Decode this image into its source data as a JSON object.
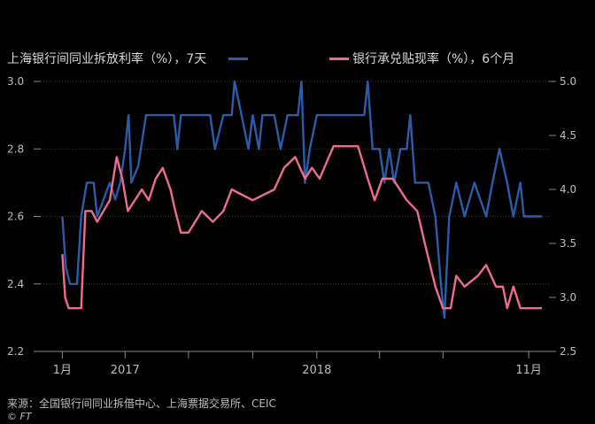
{
  "chart_data": {
    "type": "line",
    "legend_placement": "top",
    "grid": true,
    "x_start": "2016-12",
    "x_end": "2018-11",
    "x_ticks": [
      {
        "label": "1月",
        "x": "2017-01"
      },
      {
        "label": "2017",
        "x": "2017-04"
      },
      {
        "label": "",
        "x": "2017-07"
      },
      {
        "label": "",
        "x": "2017-10"
      },
      {
        "label": "2018",
        "x": "2018-01"
      },
      {
        "label": "",
        "x": "2018-04"
      },
      {
        "label": "",
        "x": "2018-07"
      },
      {
        "label": "11月",
        "x": "2018-11"
      }
    ],
    "y_left": {
      "range": [
        2.2,
        3.0
      ],
      "ticks": [
        "2.2",
        "2.4",
        "2.6",
        "2.8",
        "3.0"
      ]
    },
    "y_right": {
      "range": [
        2.5,
        5.0
      ],
      "ticks": [
        "2.5",
        "3.0",
        "3.5",
        "4.0",
        "4.5",
        "5.0"
      ]
    },
    "series": [
      {
        "name": "上海银行间同业拆放利率（%），7天",
        "axis": "left",
        "color": "#2a5caa",
        "points": [
          [
            "2017-01-01",
            2.6
          ],
          [
            "2017-01-06",
            2.45
          ],
          [
            "2017-01-12",
            2.4
          ],
          [
            "2017-01-22",
            2.4
          ],
          [
            "2017-01-28",
            2.6
          ],
          [
            "2017-02-05",
            2.7
          ],
          [
            "2017-02-15",
            2.7
          ],
          [
            "2017-02-20",
            2.6
          ],
          [
            "2017-03-01",
            2.65
          ],
          [
            "2017-03-10",
            2.7
          ],
          [
            "2017-03-18",
            2.65
          ],
          [
            "2017-03-25",
            2.7
          ],
          [
            "2017-04-01",
            2.8
          ],
          [
            "2017-04-06",
            2.9
          ],
          [
            "2017-04-10",
            2.7
          ],
          [
            "2017-04-20",
            2.75
          ],
          [
            "2017-05-01",
            2.9
          ],
          [
            "2017-06-10",
            2.9
          ],
          [
            "2017-06-15",
            2.8
          ],
          [
            "2017-06-20",
            2.9
          ],
          [
            "2017-08-01",
            2.9
          ],
          [
            "2017-08-08",
            2.8
          ],
          [
            "2017-08-20",
            2.9
          ],
          [
            "2017-09-01",
            2.9
          ],
          [
            "2017-09-05",
            3.0
          ],
          [
            "2017-09-15",
            2.9
          ],
          [
            "2017-09-25",
            2.8
          ],
          [
            "2017-10-01",
            2.9
          ],
          [
            "2017-10-10",
            2.8
          ],
          [
            "2017-10-15",
            2.9
          ],
          [
            "2017-11-01",
            2.9
          ],
          [
            "2017-11-10",
            2.8
          ],
          [
            "2017-11-20",
            2.9
          ],
          [
            "2017-12-05",
            2.9
          ],
          [
            "2017-12-10",
            3.0
          ],
          [
            "2017-12-15",
            2.7
          ],
          [
            "2017-12-22",
            2.8
          ],
          [
            "2018-01-01",
            2.9
          ],
          [
            "2018-03-10",
            2.9
          ],
          [
            "2018-03-15",
            3.0
          ],
          [
            "2018-03-22",
            2.8
          ],
          [
            "2018-04-01",
            2.8
          ],
          [
            "2018-04-08",
            2.7
          ],
          [
            "2018-04-15",
            2.8
          ],
          [
            "2018-04-22",
            2.7
          ],
          [
            "2018-05-01",
            2.8
          ],
          [
            "2018-05-10",
            2.8
          ],
          [
            "2018-05-15",
            2.9
          ],
          [
            "2018-05-22",
            2.7
          ],
          [
            "2018-06-10",
            2.7
          ],
          [
            "2018-06-20",
            2.6
          ],
          [
            "2018-06-28",
            2.4
          ],
          [
            "2018-07-03",
            2.3
          ],
          [
            "2018-07-10",
            2.6
          ],
          [
            "2018-07-20",
            2.7
          ],
          [
            "2018-08-01",
            2.6
          ],
          [
            "2018-08-15",
            2.7
          ],
          [
            "2018-09-01",
            2.6
          ],
          [
            "2018-09-10",
            2.7
          ],
          [
            "2018-09-20",
            2.8
          ],
          [
            "2018-10-01",
            2.7
          ],
          [
            "2018-10-10",
            2.6
          ],
          [
            "2018-10-20",
            2.7
          ],
          [
            "2018-10-25",
            2.6
          ],
          [
            "2018-11-20",
            2.6
          ]
        ]
      },
      {
        "name": "银行承兑贴现率（%），6个月",
        "axis": "right",
        "color": "#ef6c8f",
        "points": [
          [
            "2017-01-01",
            3.4
          ],
          [
            "2017-01-05",
            3.0
          ],
          [
            "2017-01-10",
            2.9
          ],
          [
            "2017-01-28",
            2.9
          ],
          [
            "2017-02-03",
            3.8
          ],
          [
            "2017-02-12",
            3.8
          ],
          [
            "2017-02-20",
            3.7
          ],
          [
            "2017-03-01",
            3.8
          ],
          [
            "2017-03-10",
            3.9
          ],
          [
            "2017-03-20",
            4.3
          ],
          [
            "2017-03-28",
            4.1
          ],
          [
            "2017-04-05",
            3.8
          ],
          [
            "2017-04-15",
            3.9
          ],
          [
            "2017-04-25",
            4.0
          ],
          [
            "2017-05-05",
            3.9
          ],
          [
            "2017-05-15",
            4.1
          ],
          [
            "2017-05-25",
            4.2
          ],
          [
            "2017-06-05",
            4.0
          ],
          [
            "2017-06-12",
            3.8
          ],
          [
            "2017-06-20",
            3.6
          ],
          [
            "2017-07-01",
            3.6
          ],
          [
            "2017-07-20",
            3.8
          ],
          [
            "2017-08-05",
            3.7
          ],
          [
            "2017-08-20",
            3.8
          ],
          [
            "2017-09-01",
            4.0
          ],
          [
            "2017-10-01",
            3.9
          ],
          [
            "2017-11-01",
            4.0
          ],
          [
            "2017-11-15",
            4.2
          ],
          [
            "2017-12-01",
            4.3
          ],
          [
            "2017-12-15",
            4.1
          ],
          [
            "2017-12-25",
            4.2
          ],
          [
            "2018-01-05",
            4.1
          ],
          [
            "2018-01-25",
            4.4
          ],
          [
            "2018-03-01",
            4.4
          ],
          [
            "2018-03-15",
            4.1
          ],
          [
            "2018-03-25",
            3.9
          ],
          [
            "2018-04-05",
            4.1
          ],
          [
            "2018-04-20",
            4.1
          ],
          [
            "2018-05-10",
            3.9
          ],
          [
            "2018-05-25",
            3.8
          ],
          [
            "2018-06-05",
            3.5
          ],
          [
            "2018-06-20",
            3.1
          ],
          [
            "2018-07-01",
            2.9
          ],
          [
            "2018-07-12",
            2.9
          ],
          [
            "2018-07-20",
            3.2
          ],
          [
            "2018-08-01",
            3.1
          ],
          [
            "2018-08-20",
            3.2
          ],
          [
            "2018-09-01",
            3.3
          ],
          [
            "2018-09-15",
            3.1
          ],
          [
            "2018-09-25",
            3.1
          ],
          [
            "2018-10-01",
            2.9
          ],
          [
            "2018-10-10",
            3.1
          ],
          [
            "2018-10-20",
            2.9
          ],
          [
            "2018-11-20",
            2.9
          ]
        ]
      }
    ]
  },
  "source": "来源：全国银行间同业拆借中心、上海票据交易所、CEIC",
  "copyright": "© FT"
}
